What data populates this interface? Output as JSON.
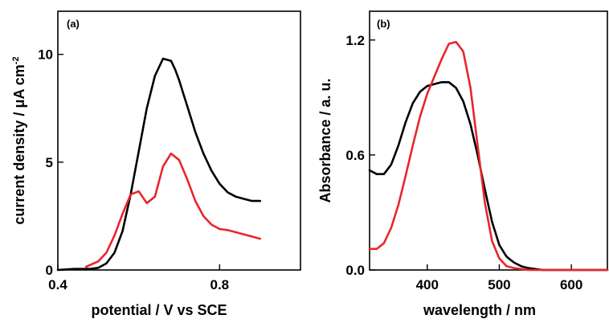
{
  "chart_data": [
    {
      "type": "line",
      "panel_label": "(a)",
      "xlabel": "potential / V vs SCE",
      "ylabel": "current density / μA cm",
      "ylabel_sup": "-2",
      "xlim": [
        0.4,
        1.0
      ],
      "ylim": [
        0,
        12
      ],
      "xticks": [
        0.4,
        0.8
      ],
      "xtick_labels": [
        "0.4",
        "0.8"
      ],
      "yticks": [
        0,
        5,
        10
      ],
      "ytick_labels": [
        "0",
        "5",
        "10"
      ],
      "grid": false,
      "series": [
        {
          "color": "#000000",
          "x": [
            0.4,
            0.44,
            0.48,
            0.5,
            0.52,
            0.54,
            0.56,
            0.58,
            0.6,
            0.62,
            0.64,
            0.66,
            0.68,
            0.69,
            0.7,
            0.71,
            0.72,
            0.73,
            0.74,
            0.76,
            0.78,
            0.8,
            0.82,
            0.84,
            0.86,
            0.88,
            0.9
          ],
          "y": [
            0.0,
            0.05,
            0.05,
            0.1,
            0.3,
            0.8,
            1.8,
            3.5,
            5.5,
            7.5,
            9.0,
            9.8,
            9.7,
            9.3,
            8.8,
            8.2,
            7.6,
            7.0,
            6.4,
            5.4,
            4.6,
            4.0,
            3.6,
            3.4,
            3.3,
            3.2,
            3.2
          ]
        },
        {
          "color": "#e8262a",
          "x": [
            0.47,
            0.5,
            0.52,
            0.54,
            0.56,
            0.58,
            0.6,
            0.62,
            0.64,
            0.66,
            0.68,
            0.7,
            0.72,
            0.74,
            0.76,
            0.78,
            0.8,
            0.82,
            0.84,
            0.86,
            0.88,
            0.9
          ],
          "y": [
            0.15,
            0.4,
            0.8,
            1.6,
            2.6,
            3.5,
            3.65,
            3.1,
            3.4,
            4.8,
            5.4,
            5.1,
            4.2,
            3.2,
            2.5,
            2.1,
            1.9,
            1.85,
            1.75,
            1.65,
            1.55,
            1.45
          ]
        }
      ]
    },
    {
      "type": "line",
      "panel_label": "(b)",
      "xlabel": "wavelength / nm",
      "ylabel": "Absorbance / a. u.",
      "xlim": [
        320,
        650
      ],
      "ylim": [
        0.0,
        1.35
      ],
      "xticks": [
        400,
        500,
        600
      ],
      "xtick_labels": [
        "400",
        "500",
        "600"
      ],
      "yticks": [
        0.0,
        0.6,
        1.2
      ],
      "ytick_labels": [
        "0.0",
        "0.6",
        "1.2"
      ],
      "grid": false,
      "series": [
        {
          "color": "#000000",
          "x": [
            320,
            330,
            340,
            350,
            360,
            370,
            380,
            390,
            400,
            410,
            420,
            430,
            440,
            450,
            460,
            470,
            480,
            490,
            500,
            510,
            520,
            530,
            540,
            550,
            560,
            580,
            600,
            620,
            640,
            650
          ],
          "y": [
            0.52,
            0.5,
            0.5,
            0.55,
            0.65,
            0.77,
            0.87,
            0.93,
            0.96,
            0.97,
            0.98,
            0.98,
            0.95,
            0.88,
            0.76,
            0.6,
            0.42,
            0.25,
            0.13,
            0.07,
            0.04,
            0.02,
            0.01,
            0.005,
            0.0,
            0.0,
            0.0,
            0.0,
            0.0,
            0.0
          ]
        },
        {
          "color": "#e8262a",
          "x": [
            320,
            330,
            340,
            350,
            360,
            370,
            380,
            390,
            400,
            410,
            420,
            430,
            440,
            450,
            460,
            470,
            480,
            490,
            500,
            510,
            520,
            530,
            540,
            550,
            560,
            580,
            600,
            620,
            640,
            650
          ],
          "y": [
            0.11,
            0.11,
            0.14,
            0.22,
            0.34,
            0.49,
            0.65,
            0.8,
            0.92,
            1.01,
            1.1,
            1.18,
            1.19,
            1.14,
            0.95,
            0.65,
            0.35,
            0.15,
            0.06,
            0.02,
            0.01,
            0.005,
            0.0,
            0.0,
            0.0,
            0.0,
            0.0,
            0.0,
            0.0,
            0.0
          ]
        }
      ]
    }
  ]
}
